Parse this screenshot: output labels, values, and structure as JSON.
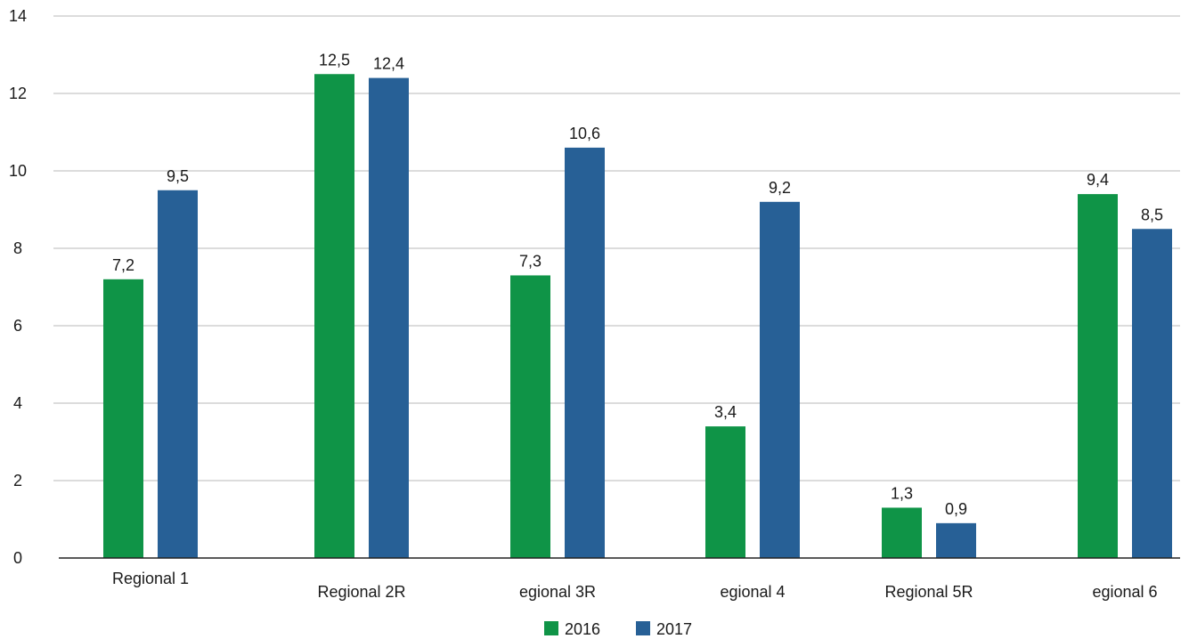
{
  "chart_data": {
    "type": "bar",
    "title": "",
    "xlabel": "",
    "ylabel": "",
    "ylim": [
      0,
      14
    ],
    "yticks": [
      "0",
      "2",
      "4",
      "6",
      "8",
      "10",
      "12",
      "14"
    ],
    "grid": true,
    "legend_position": "bottom",
    "categories": [
      "Regional 1",
      "Regional 2R",
      "egional 3R",
      "egional 4",
      "Regional 5R",
      "egional 6"
    ],
    "series": [
      {
        "name": "2016",
        "color": "#0f9447",
        "values": [
          7.2,
          12.5,
          7.3,
          3.4,
          1.3,
          9.4
        ],
        "labels": [
          "7,2",
          "12,5",
          "7,3",
          "3,4",
          "1,3",
          "9,4"
        ]
      },
      {
        "name": "2017",
        "color": "#276096",
        "values": [
          9.5,
          12.4,
          10.6,
          9.2,
          0.9,
          8.5
        ],
        "labels": [
          "9,5",
          "12,4",
          "10,6",
          "9,2",
          "0,9",
          "8,5"
        ]
      }
    ]
  }
}
